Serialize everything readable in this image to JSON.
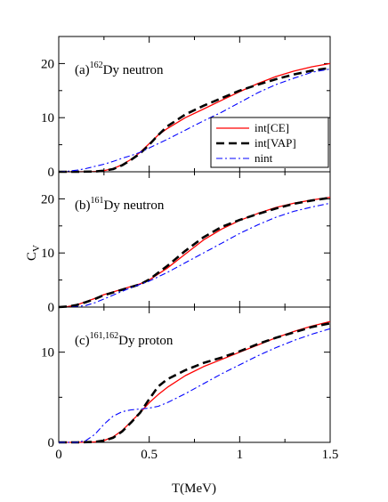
{
  "chart_data": {
    "type": "line",
    "shared_x": {
      "label": "T(MeV)",
      "lim": [
        0,
        1.5
      ],
      "ticks": [
        0,
        0.5,
        1,
        1.5
      ],
      "tick_labels": [
        "0",
        "0.5",
        "1",
        "1.5"
      ]
    },
    "ylabel": {
      "main": "C",
      "sub": "V"
    },
    "legend": {
      "position": "right, inside top panel",
      "entries": [
        {
          "label": "int[CE]",
          "color": "#ff0000",
          "dash": "solid"
        },
        {
          "label": "int[VAP]",
          "color": "#000000",
          "dash": "dashed"
        },
        {
          "label": "nint",
          "color": "#0000ff",
          "dash": "dash-dot"
        }
      ]
    },
    "panels": [
      {
        "id": "a",
        "label_prefix": "(a)",
        "label_sup": "162",
        "label_rest": "Dy neutron",
        "ylim": [
          0,
          25
        ],
        "yticks": [
          0,
          10,
          20
        ],
        "series": [
          {
            "name": "int[CE]",
            "x": [
              0,
              0.1,
              0.2,
              0.25,
              0.3,
              0.35,
              0.4,
              0.45,
              0.5,
              0.55,
              0.6,
              0.7,
              0.8,
              0.9,
              1.0,
              1.1,
              1.2,
              1.3,
              1.4,
              1.5
            ],
            "y": [
              0,
              0,
              0.05,
              0.2,
              0.6,
              1.3,
              2.3,
              3.6,
              5.2,
              6.8,
              8.0,
              10.0,
              11.6,
              13.2,
              14.8,
              16.3,
              17.6,
              18.6,
              19.4,
              20.0
            ]
          },
          {
            "name": "int[VAP]",
            "x": [
              0,
              0.1,
              0.2,
              0.25,
              0.3,
              0.35,
              0.4,
              0.45,
              0.5,
              0.55,
              0.6,
              0.7,
              0.8,
              0.9,
              1.0,
              1.1,
              1.2,
              1.3,
              1.4,
              1.5
            ],
            "y": [
              0,
              0,
              0.05,
              0.2,
              0.5,
              1.2,
              2.2,
              3.4,
              5.0,
              6.8,
              8.4,
              10.6,
              12.2,
              13.6,
              15.0,
              16.1,
              17.1,
              18.0,
              18.7,
              19.2
            ]
          },
          {
            "name": "nint",
            "x": [
              0,
              0.05,
              0.1,
              0.15,
              0.2,
              0.25,
              0.3,
              0.35,
              0.4,
              0.45,
              0.5,
              0.6,
              0.7,
              0.8,
              0.9,
              1.0,
              1.1,
              1.2,
              1.3,
              1.4,
              1.5
            ],
            "y": [
              0,
              0.1,
              0.3,
              0.6,
              1.0,
              1.4,
              1.9,
              2.5,
              3.0,
              3.6,
              4.4,
              6.0,
              7.7,
              9.4,
              11.0,
              12.8,
              14.6,
              16.1,
              17.3,
              18.4,
              19.0
            ]
          }
        ]
      },
      {
        "id": "b",
        "label_prefix": "(b)",
        "label_sup": "161",
        "label_rest": "Dy neutron",
        "ylim": [
          0,
          25
        ],
        "yticks": [
          0,
          10,
          20
        ],
        "series": [
          {
            "name": "int[CE]",
            "x": [
              0,
              0.05,
              0.1,
              0.15,
              0.2,
              0.25,
              0.3,
              0.35,
              0.4,
              0.45,
              0.5,
              0.6,
              0.7,
              0.8,
              0.9,
              1.0,
              1.1,
              1.2,
              1.3,
              1.4,
              1.5
            ],
            "y": [
              0,
              0.1,
              0.4,
              1.0,
              1.6,
              2.3,
              2.8,
              3.3,
              3.8,
              4.3,
              5.0,
              7.2,
              9.8,
              12.4,
              14.4,
              16.0,
              17.3,
              18.4,
              19.2,
              19.8,
              20.3
            ]
          },
          {
            "name": "int[VAP]",
            "x": [
              0,
              0.05,
              0.1,
              0.15,
              0.2,
              0.25,
              0.3,
              0.35,
              0.4,
              0.45,
              0.5,
              0.6,
              0.7,
              0.8,
              0.9,
              1.0,
              1.1,
              1.2,
              1.3,
              1.4,
              1.5
            ],
            "y": [
              0,
              0.1,
              0.4,
              0.9,
              1.5,
              2.2,
              2.7,
              3.2,
              3.7,
              4.2,
              5.1,
              7.6,
              10.4,
              12.9,
              14.8,
              16.1,
              17.2,
              18.2,
              19.1,
              19.7,
              20.2
            ]
          },
          {
            "name": "nint",
            "x": [
              0,
              0.05,
              0.1,
              0.15,
              0.2,
              0.25,
              0.3,
              0.35,
              0.4,
              0.45,
              0.5,
              0.6,
              0.7,
              0.8,
              0.9,
              1.0,
              1.1,
              1.2,
              1.3,
              1.4,
              1.5
            ],
            "y": [
              0,
              0,
              0.1,
              0.3,
              0.8,
              1.5,
              2.2,
              2.9,
              3.6,
              4.2,
              4.8,
              6.4,
              8.2,
              10.0,
              11.8,
              13.6,
              15.2,
              16.6,
              17.7,
              18.5,
              19.2
            ]
          }
        ]
      },
      {
        "id": "c",
        "label_prefix": "(c)",
        "label_sup": "161,162",
        "label_rest": "Dy proton",
        "ylim": [
          0,
          15
        ],
        "yticks": [
          0,
          10
        ],
        "series": [
          {
            "name": "int[CE]",
            "x": [
              0,
              0.1,
              0.2,
              0.25,
              0.3,
              0.35,
              0.4,
              0.45,
              0.5,
              0.55,
              0.6,
              0.7,
              0.8,
              0.9,
              1.0,
              1.1,
              1.2,
              1.3,
              1.4,
              1.5
            ],
            "y": [
              0,
              0,
              0.05,
              0.2,
              0.6,
              1.3,
              2.3,
              3.3,
              4.4,
              5.3,
              6.1,
              7.4,
              8.4,
              9.2,
              10.0,
              10.8,
              11.6,
              12.3,
              12.9,
              13.4
            ]
          },
          {
            "name": "int[VAP]",
            "x": [
              0,
              0.1,
              0.2,
              0.25,
              0.3,
              0.35,
              0.4,
              0.45,
              0.5,
              0.55,
              0.6,
              0.7,
              0.8,
              0.9,
              1.0,
              1.1,
              1.2,
              1.3,
              1.4,
              1.5
            ],
            "y": [
              0,
              0,
              0.05,
              0.2,
              0.5,
              1.2,
              2.2,
              3.3,
              4.8,
              6.2,
              7.0,
              8.0,
              8.8,
              9.4,
              10.1,
              10.9,
              11.6,
              12.2,
              12.8,
              13.2
            ]
          },
          {
            "name": "nint",
            "x": [
              0,
              0.1,
              0.15,
              0.2,
              0.25,
              0.3,
              0.35,
              0.4,
              0.45,
              0.5,
              0.55,
              0.6,
              0.7,
              0.8,
              0.9,
              1.0,
              1.1,
              1.2,
              1.3,
              1.4,
              1.5
            ],
            "y": [
              0,
              0,
              0.2,
              0.9,
              2.0,
              2.9,
              3.4,
              3.6,
              3.7,
              3.8,
              4.0,
              4.4,
              5.4,
              6.5,
              7.6,
              8.6,
              9.6,
              10.5,
              11.3,
              12.0,
              12.6
            ]
          }
        ]
      }
    ]
  }
}
